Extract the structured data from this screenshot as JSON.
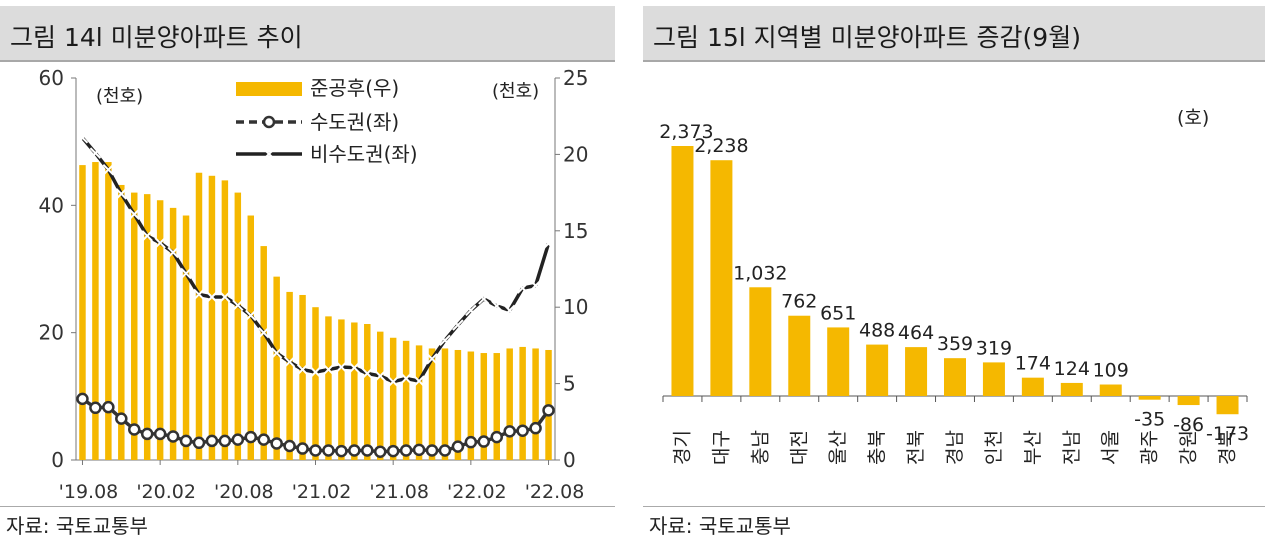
{
  "left": {
    "title": "그림 14l 미분양아파트 추이",
    "source": "자료: 국토교통부",
    "unit_left": "(천호)",
    "unit_right": "(천호)",
    "chart_data": {
      "type": "bar+line",
      "x": [
        "'19.08",
        "'19.09",
        "'19.10",
        "'19.11",
        "'19.12",
        "'20.01",
        "'20.02",
        "'20.03",
        "'20.04",
        "'20.05",
        "'20.06",
        "'20.07",
        "'20.08",
        "'20.09",
        "'20.10",
        "'20.11",
        "'20.12",
        "'21.01",
        "'21.02",
        "'21.03",
        "'21.04",
        "'21.05",
        "'21.06",
        "'21.07",
        "'21.08",
        "'21.09",
        "'21.10",
        "'21.11",
        "'21.12",
        "'22.01",
        "'22.02",
        "'22.03",
        "'22.04",
        "'22.05",
        "'22.06",
        "'22.07",
        "'22.08"
      ],
      "xticks": [
        "'19.08",
        "'20.02",
        "'20.08",
        "'21.02",
        "'21.08",
        "'22.02",
        "'22.08"
      ],
      "left_axis": {
        "ylim": [
          0,
          60
        ],
        "ticks": [
          0,
          20,
          40,
          60
        ]
      },
      "right_axis": {
        "ylim": [
          0,
          25
        ],
        "ticks": [
          0,
          5,
          10,
          15,
          20,
          25
        ]
      },
      "legend": [
        "준공후(우)",
        "수도권(좌)",
        "비수도권(좌)"
      ],
      "series": [
        {
          "name": "준공후(우)",
          "axis": "right",
          "kind": "bar",
          "color": "#f5b800",
          "values": [
            19.3,
            19.5,
            19.5,
            18.0,
            17.5,
            17.4,
            17.0,
            16.5,
            16.0,
            18.8,
            18.6,
            18.3,
            17.5,
            16.0,
            14.0,
            12.0,
            11.0,
            10.8,
            10.0,
            9.4,
            9.2,
            9.0,
            8.9,
            8.4,
            8.0,
            7.8,
            7.5,
            7.3,
            7.3,
            7.2,
            7.1,
            7.0,
            7.0,
            7.3,
            7.4,
            7.3,
            7.2
          ]
        },
        {
          "name": "수도권(좌)",
          "axis": "left",
          "kind": "line",
          "color": "#333333",
          "values": [
            9.6,
            8.2,
            8.3,
            6.5,
            4.8,
            4.1,
            4.1,
            3.7,
            3.0,
            2.7,
            3.0,
            3.0,
            3.2,
            3.6,
            3.2,
            2.6,
            2.2,
            1.8,
            1.5,
            1.5,
            1.4,
            1.5,
            1.5,
            1.3,
            1.4,
            1.5,
            1.6,
            1.5,
            1.5,
            2.1,
            2.8,
            2.9,
            3.6,
            4.5,
            4.6,
            5.0,
            7.8
          ]
        },
        {
          "name": "비수도권(좌)",
          "axis": "left",
          "kind": "line",
          "color": "#222222",
          "values": [
            50.6,
            48.2,
            45.6,
            41.8,
            38.6,
            35.2,
            34.1,
            32.6,
            29.3,
            26.0,
            25.6,
            25.6,
            24.3,
            22.7,
            20.0,
            16.8,
            15.4,
            14.2,
            13.8,
            14.2,
            14.6,
            14.5,
            13.6,
            13.2,
            12.3,
            12.8,
            12.4,
            15.9,
            18.8,
            21.2,
            23.5,
            25.3,
            24.2,
            23.5,
            27.0,
            27.4,
            34.0
          ]
        }
      ]
    }
  },
  "right": {
    "title": "그림 15l 지역별 미분양아파트 증감(9월)",
    "source": "자료: 국토교통부",
    "unit": "(호)",
    "chart_data": {
      "type": "bar",
      "categories": [
        "경기",
        "대구",
        "충남",
        "대전",
        "울산",
        "충북",
        "전북",
        "경남",
        "인천",
        "부산",
        "전남",
        "서울",
        "광주",
        "강원",
        "경북"
      ],
      "values": [
        2373,
        2238,
        1032,
        762,
        651,
        488,
        464,
        359,
        319,
        174,
        124,
        109,
        -35,
        -86,
        -173
      ],
      "value_labels": [
        "2,373",
        "2,238",
        "1,032",
        "762",
        "651",
        "488",
        "464",
        "359",
        "319",
        "174",
        "124",
        "109",
        "-35",
        "-86",
        "-173"
      ],
      "bar_color": "#f5b800",
      "ylim": [
        -300,
        2500
      ]
    }
  }
}
